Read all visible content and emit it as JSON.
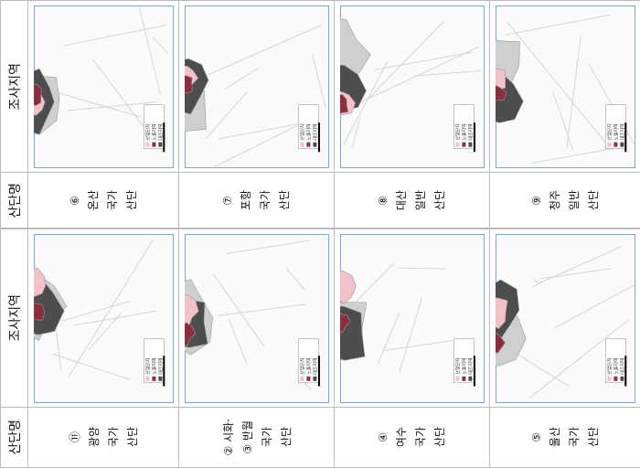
{
  "headers": {
    "region": "조사지역",
    "name": "산단명"
  },
  "legend": [
    "산업단지",
    "노출지역",
    "대조지역"
  ],
  "rows": [
    [
      {
        "number": "⑥",
        "name": "온산",
        "kind": "국가",
        "suffix": "산단"
      },
      {
        "number": "⑦",
        "name": "포항",
        "kind": "국가",
        "suffix": "산단"
      },
      {
        "number": "⑧",
        "name": "대산",
        "kind": "일반",
        "suffix": "산단"
      },
      {
        "number": "⑨",
        "name": "청주",
        "kind": "일반",
        "suffix": "산단"
      }
    ],
    [
      {
        "number": "⑪",
        "name": "광양",
        "kind": "국가",
        "suffix": "산단"
      },
      {
        "number": "② 시화·",
        "name": "③ 반월",
        "kind": "국가",
        "suffix": "산단"
      },
      {
        "number": "④",
        "name": "여수",
        "kind": "국가",
        "suffix": "산단"
      },
      {
        "number": "⑤",
        "name": "울산",
        "kind": "국가",
        "suffix": "산단"
      }
    ]
  ]
}
